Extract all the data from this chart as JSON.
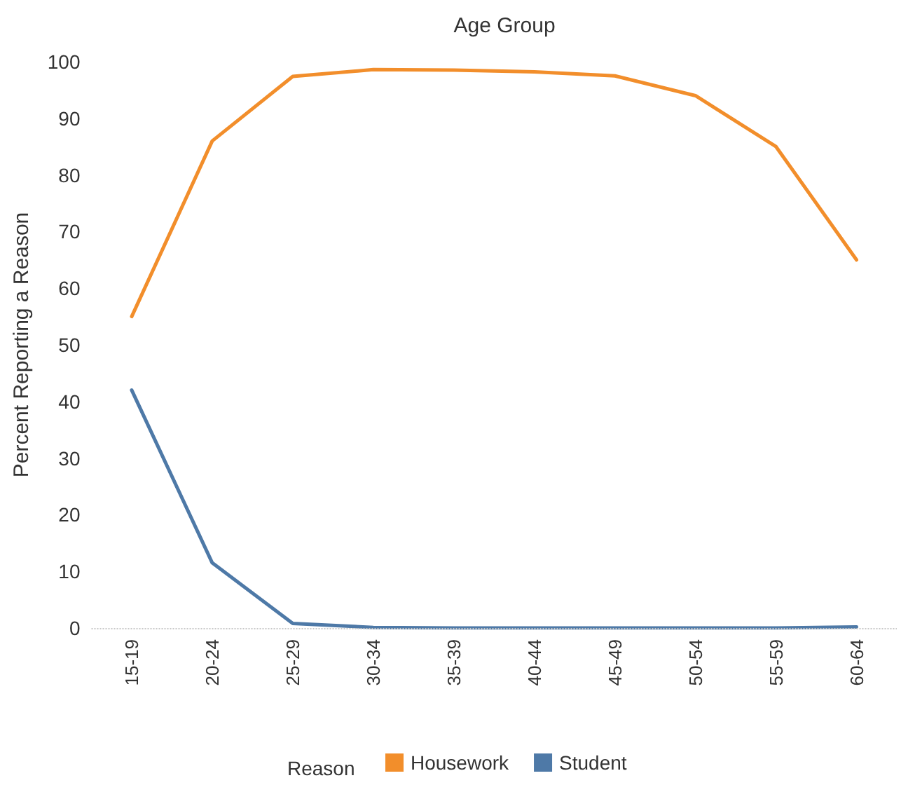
{
  "chart_data": {
    "type": "line",
    "xlabel": "Age Group",
    "ylabel": "Percent Reporting a Reason",
    "legend_title": "Reason",
    "categories": [
      "15-19",
      "20-24",
      "25-29",
      "30-34",
      "35-39",
      "40-44",
      "45-49",
      "50-54",
      "55-59",
      "60-64"
    ],
    "series": [
      {
        "name": "Housework",
        "color": "#f28e2b",
        "values": [
          55,
          86,
          97.4,
          98.6,
          98.5,
          98.2,
          97.5,
          94,
          85,
          65
        ]
      },
      {
        "name": "Student",
        "color": "#4e79a7",
        "values": [
          42,
          11.5,
          0.8,
          0.1,
          0,
          0,
          0,
          0,
          0,
          0.2
        ]
      }
    ],
    "ylim": [
      0,
      100
    ],
    "yticks": [
      0,
      10,
      20,
      30,
      40,
      50,
      60,
      70,
      80,
      90,
      100
    ],
    "grid": false,
    "legend": "bottom",
    "marker": "none",
    "line_style": "solid",
    "ref_lines": [
      {
        "axis": "y",
        "value": 0,
        "color": "#c8c8c8",
        "line_style": "dotted"
      }
    ]
  }
}
